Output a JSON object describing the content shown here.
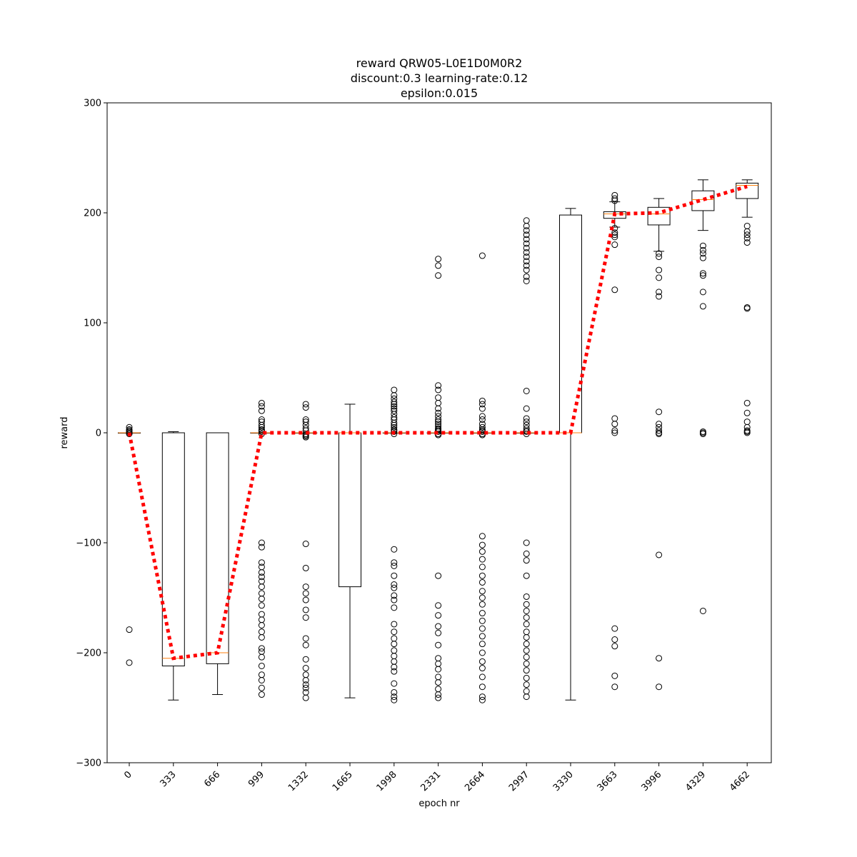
{
  "chart_data": {
    "type": "box",
    "title_lines": [
      "reward QRW05-L0E1D0M0R2",
      "discount:0.3 learning-rate:0.12",
      "epsilon:0.015"
    ],
    "xlabel": "epoch nr",
    "ylabel": "reward",
    "ylim": [
      -300,
      300
    ],
    "yticks": [
      -300,
      -200,
      -100,
      0,
      100,
      200,
      300
    ],
    "ytick_labels": [
      "−300",
      "−200",
      "−100",
      "0",
      "100",
      "200",
      "300"
    ],
    "categories": [
      "0",
      "333",
      "666",
      "999",
      "1332",
      "1665",
      "1998",
      "2331",
      "2664",
      "2997",
      "3330",
      "3663",
      "3996",
      "4329",
      "4662"
    ],
    "boxes": [
      {
        "q1": 0,
        "median": 0,
        "q3": 0,
        "whisker_low": 0,
        "whisker_high": 0,
        "outliers": [
          5,
          3,
          2,
          1,
          0,
          -1,
          -179,
          -209
        ]
      },
      {
        "q1": -212,
        "median": -205,
        "q3": 0,
        "whisker_low": -243,
        "whisker_high": 1,
        "outliers": []
      },
      {
        "q1": -210,
        "median": -200,
        "q3": 0,
        "whisker_low": -238,
        "whisker_high": 0,
        "outliers": []
      },
      {
        "q1": 0,
        "median": 0,
        "q3": 0,
        "whisker_low": 0,
        "whisker_high": 0,
        "outliers": [
          27,
          24,
          20,
          12,
          10,
          7,
          5,
          3,
          2,
          1,
          -1,
          -100,
          -104,
          -118,
          -122,
          -127,
          -131,
          -135,
          -140,
          -146,
          -151,
          -157,
          -165,
          -170,
          -175,
          -181,
          -186,
          -196,
          -199,
          -204,
          -212,
          -220,
          -225,
          -232,
          -238
        ]
      },
      {
        "q1": 0,
        "median": 0,
        "q3": 0,
        "whisker_low": 0,
        "whisker_high": 0,
        "outliers": [
          26,
          23,
          12,
          10,
          7,
          4,
          2,
          -1,
          -2,
          -3,
          -4,
          -101,
          -123,
          -140,
          -146,
          -152,
          -161,
          -168,
          -187,
          -193,
          -206,
          -214,
          -220,
          -225,
          -229,
          -232,
          -236,
          -241
        ]
      },
      {
        "q1": -140,
        "median": 0,
        "q3": 0,
        "whisker_low": -241,
        "whisker_high": 26,
        "outliers": []
      },
      {
        "q1": 0,
        "median": 0,
        "q3": 0,
        "whisker_low": 0,
        "whisker_high": 0,
        "outliers": [
          39,
          34,
          31,
          28,
          26,
          24,
          22,
          20,
          17,
          14,
          12,
          9,
          7,
          5,
          3,
          2,
          1,
          -1,
          -106,
          -118,
          -121,
          -130,
          -138,
          -141,
          -148,
          -152,
          -159,
          -174,
          -181,
          -187,
          -192,
          -198,
          -203,
          -208,
          -213,
          -217,
          -228,
          -236,
          -240,
          -243
        ]
      },
      {
        "q1": 0,
        "median": 0,
        "q3": 0,
        "whisker_low": 0,
        "whisker_high": 0,
        "outliers": [
          158,
          152,
          143,
          43,
          39,
          32,
          27,
          22,
          18,
          15,
          12,
          10,
          8,
          6,
          4,
          3,
          2,
          1,
          -1,
          -2,
          -130,
          -157,
          -166,
          -176,
          -182,
          -193,
          -205,
          -210,
          -215,
          -222,
          -227,
          -233,
          -238,
          -241
        ]
      },
      {
        "q1": 0,
        "median": 0,
        "q3": 0,
        "whisker_low": 0,
        "whisker_high": 0,
        "outliers": [
          161,
          29,
          26,
          22,
          15,
          12,
          8,
          5,
          3,
          2,
          1,
          -1,
          -2,
          -94,
          -102,
          -108,
          -115,
          -122,
          -130,
          -136,
          -144,
          -150,
          -156,
          -164,
          -171,
          -178,
          -185,
          -192,
          -200,
          -208,
          -214,
          -222,
          -231,
          -240,
          -243
        ]
      },
      {
        "q1": 0,
        "median": 0,
        "q3": 0,
        "whisker_low": 0,
        "whisker_high": 0,
        "outliers": [
          193,
          188,
          184,
          180,
          176,
          172,
          168,
          164,
          160,
          156,
          152,
          148,
          142,
          138,
          38,
          22,
          13,
          10,
          7,
          4,
          2,
          1,
          -1,
          -100,
          -110,
          -116,
          -130,
          -149,
          -156,
          -162,
          -168,
          -174,
          -181,
          -186,
          -192,
          -198,
          -204,
          -210,
          -216,
          -223,
          -229,
          -235,
          -240
        ]
      },
      {
        "q1": 0,
        "median": 0,
        "q3": 198,
        "whisker_low": -243,
        "whisker_high": 204,
        "outliers": []
      },
      {
        "q1": 195,
        "median": 199,
        "q3": 201,
        "whisker_low": 187,
        "whisker_high": 210,
        "outliers": [
          216,
          213,
          211,
          186,
          182,
          180,
          178,
          171,
          130,
          13,
          8,
          2,
          0,
          -178,
          -188,
          -194,
          -221,
          -231
        ]
      },
      {
        "q1": 189,
        "median": 199,
        "q3": 205,
        "whisker_low": 165,
        "whisker_high": 213,
        "outliers": [
          163,
          160,
          148,
          141,
          128,
          124,
          19,
          8,
          5,
          2,
          0,
          -1,
          -111,
          -205,
          -231
        ]
      },
      {
        "q1": 202,
        "median": 212,
        "q3": 220,
        "whisker_low": 184,
        "whisker_high": 230,
        "outliers": [
          170,
          166,
          163,
          159,
          145,
          143,
          128,
          115,
          1,
          0,
          -1,
          -162
        ]
      },
      {
        "q1": 213,
        "median": 225,
        "q3": 227,
        "whisker_low": 196,
        "whisker_high": 230,
        "outliers": [
          188,
          183,
          180,
          177,
          173,
          114,
          113,
          27,
          18,
          10,
          5,
          2,
          1,
          0
        ]
      }
    ],
    "mean_line": {
      "values": [
        0,
        -205,
        -200,
        0,
        0,
        0,
        0,
        0,
        0,
        0,
        0,
        199,
        200,
        212,
        224
      ],
      "color": "#ff0000",
      "style": "dotted"
    },
    "box_color": "#000000",
    "median_color": "#ff7f0e",
    "flier_style": "hollow-circle"
  }
}
